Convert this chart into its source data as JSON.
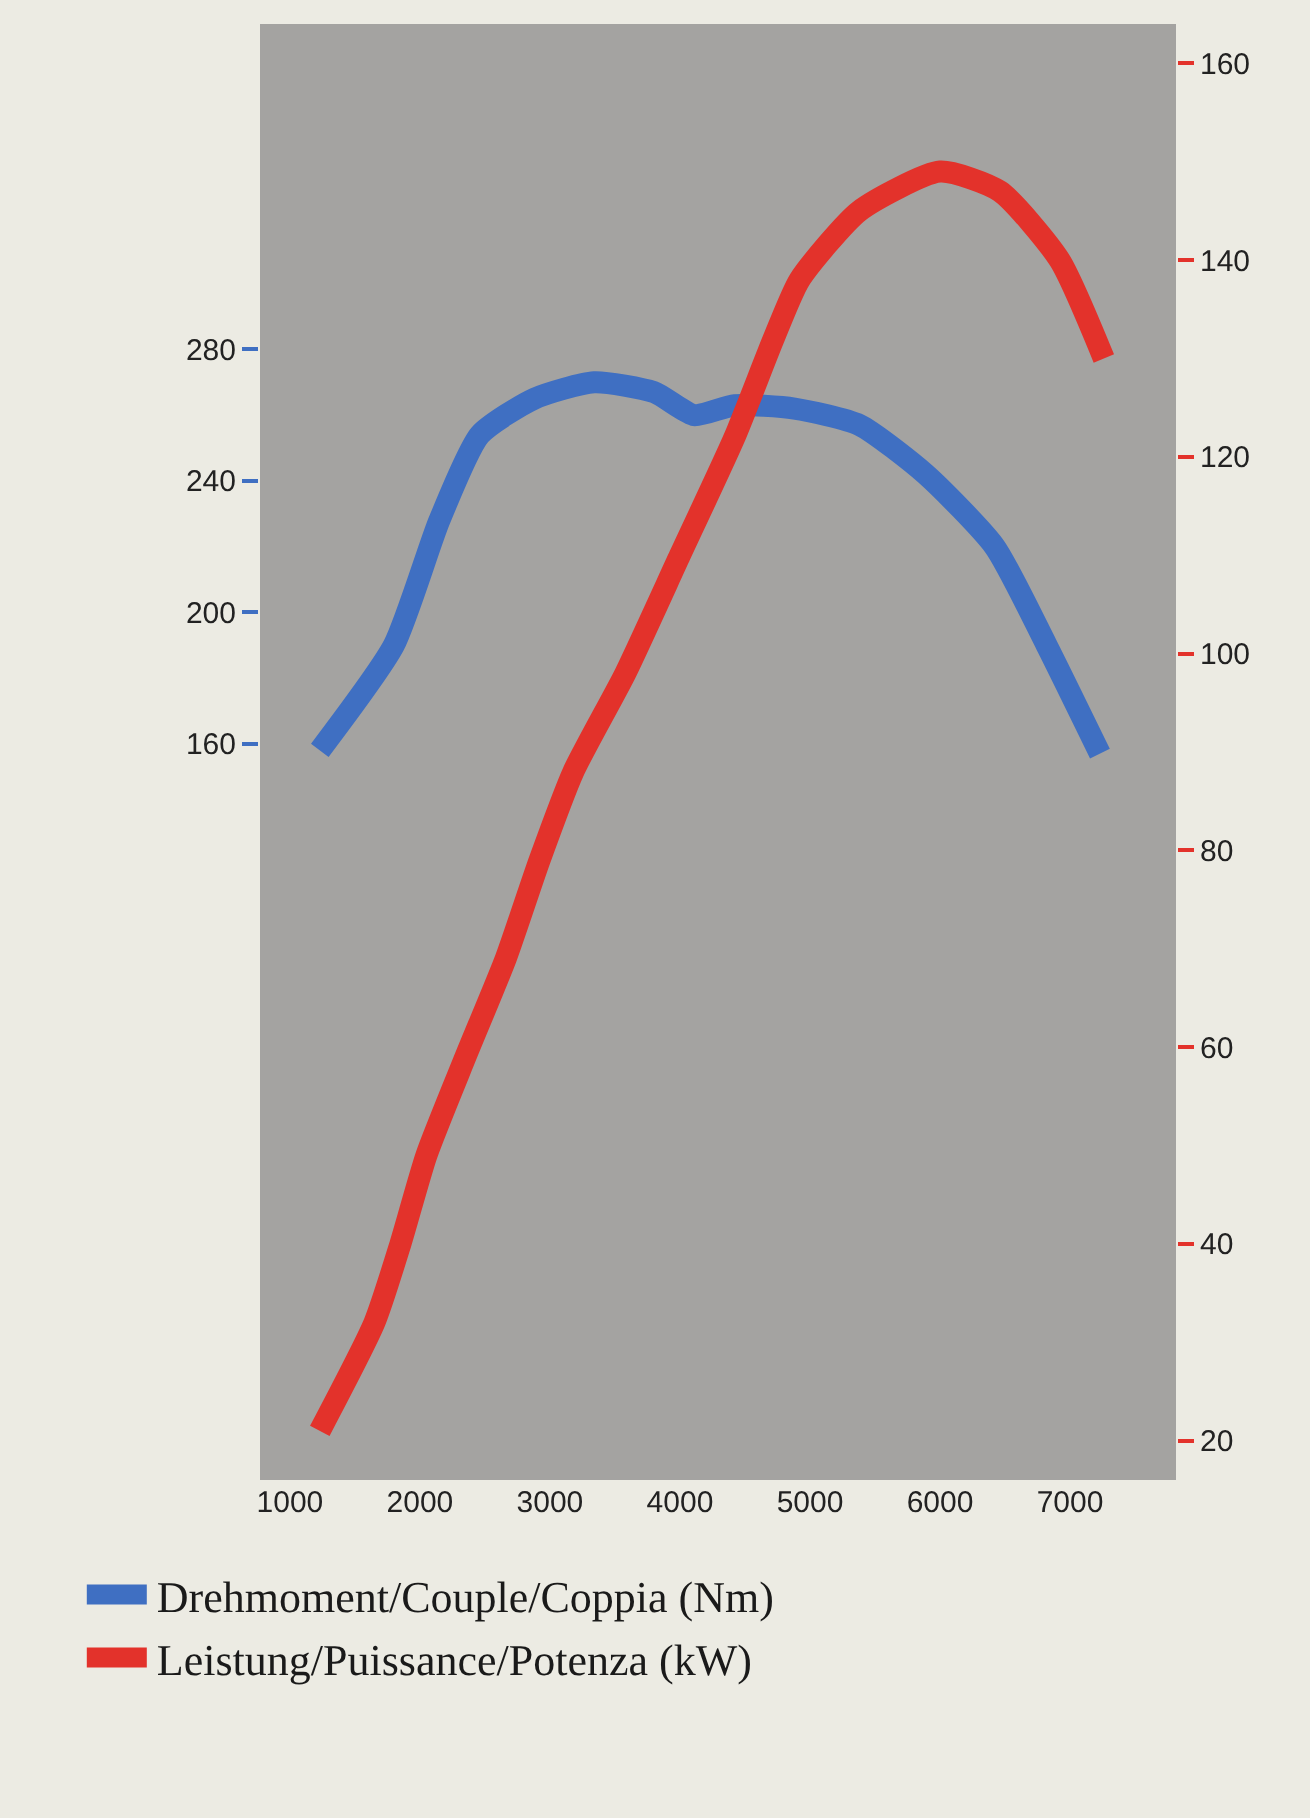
{
  "chart_data": {
    "type": "line",
    "series": [
      {
        "name": "Drehmoment/Couple/Coppia (Nm)",
        "color": "#3f6fc2",
        "axis": "y",
        "x": [
          1230,
          1800,
          2150,
          2460,
          2880,
          3340,
          3800,
          4110,
          4420,
          4880,
          5380,
          5890,
          6420,
          6820,
          7230
        ],
        "values": [
          158,
          190,
          228,
          254,
          265,
          270,
          267,
          260,
          263,
          262,
          257,
          242,
          220,
          190,
          157
        ]
      },
      {
        "name": "Leistung/Puissance/Potenza (kW)",
        "color": "#e3322b",
        "axis": "y2",
        "x": [
          1230,
          1650,
          1850,
          2050,
          2350,
          2660,
          2920,
          3180,
          3580,
          4000,
          4420,
          4720,
          4920,
          5380,
          6000,
          6460,
          6920,
          7260
        ],
        "values": [
          21,
          32,
          40,
          49,
          59,
          69,
          79,
          88,
          98,
          110,
          122,
          132,
          138,
          145,
          149,
          147,
          140,
          130
        ]
      }
    ],
    "xlim": [
      770,
      7815
    ],
    "xticks": [
      1000,
      2000,
      3000,
      4000,
      5000,
      6000,
      7000
    ],
    "ylim": [
      -64,
      379
    ],
    "yticks": [
      160,
      200,
      240,
      280
    ],
    "y2lim": [
      16,
      164
    ],
    "y2ticks": [
      20,
      40,
      60,
      80,
      100,
      120,
      140,
      160
    ],
    "grid": false,
    "legend": "bottom",
    "marker": "none",
    "line_style": "solid"
  }
}
